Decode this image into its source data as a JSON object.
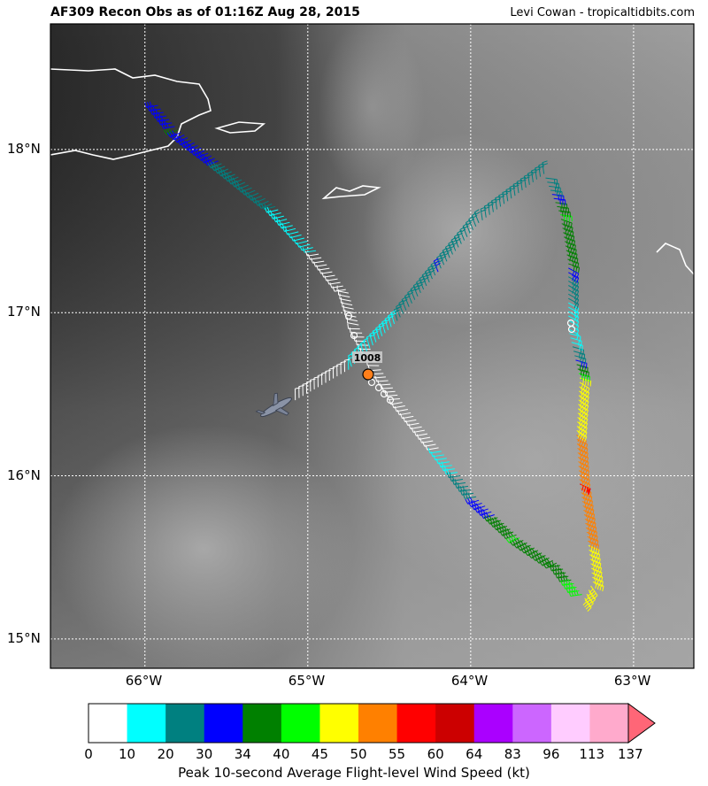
{
  "header": {
    "title": "AF309 Recon Obs as of 01:16Z Aug 28, 2015",
    "credit": "Levi Cowan - tropicaltidbits.com"
  },
  "map": {
    "lon_range": [
      -66.58,
      -62.63
    ],
    "lat_range": [
      14.82,
      18.77
    ],
    "lon_ticks": [
      {
        "value": -66,
        "label": "66°W"
      },
      {
        "value": -65,
        "label": "65°W"
      },
      {
        "value": -64,
        "label": "64°W"
      },
      {
        "value": -63,
        "label": "63°W"
      }
    ],
    "lat_ticks": [
      {
        "value": 18,
        "label": "18°N"
      },
      {
        "value": 17,
        "label": "17°N"
      },
      {
        "value": 16,
        "label": "16°N"
      },
      {
        "value": 15,
        "label": "15°N"
      }
    ],
    "grid": true,
    "center_fix": {
      "lon": -64.62,
      "lat": 16.61,
      "pressure_label": "1008"
    },
    "aircraft_icon": "aircraft-icon",
    "flight_path": [
      {
        "lon": -65.92,
        "lat": 18.27,
        "wind": 30
      },
      {
        "lon": -65.8,
        "lat": 18.12,
        "wind": 34
      },
      {
        "lon": -65.55,
        "lat": 17.93,
        "wind": 30
      },
      {
        "lon": -65.2,
        "lat": 17.65,
        "wind": 20
      },
      {
        "lon": -64.95,
        "lat": 17.38,
        "wind": 10
      },
      {
        "lon": -64.75,
        "lat": 17.12,
        "wind": 5
      },
      {
        "lon": -64.68,
        "lat": 16.9,
        "wind": 5
      },
      {
        "lon": -64.55,
        "lat": 16.65,
        "wind": 5
      },
      {
        "lon": -64.42,
        "lat": 16.45,
        "wind": 5
      },
      {
        "lon": -64.18,
        "lat": 16.15,
        "wind": 10
      },
      {
        "lon": -63.95,
        "lat": 15.85,
        "wind": 30
      },
      {
        "lon": -63.7,
        "lat": 15.62,
        "wind": 40
      },
      {
        "lon": -63.45,
        "lat": 15.45,
        "wind": 34
      },
      {
        "lon": -63.3,
        "lat": 15.25,
        "wind": 45
      },
      {
        "lon": -63.25,
        "lat": 15.35,
        "wind": 45
      },
      {
        "lon": -63.28,
        "lat": 15.6,
        "wind": 50
      },
      {
        "lon": -63.33,
        "lat": 15.95,
        "wind": 55
      },
      {
        "lon": -63.35,
        "lat": 16.25,
        "wind": 50
      },
      {
        "lon": -63.33,
        "lat": 16.6,
        "wind": 45
      },
      {
        "lon": -63.4,
        "lat": 16.9,
        "wind": 10
      },
      {
        "lon": -63.4,
        "lat": 17.3,
        "wind": 34
      },
      {
        "lon": -63.45,
        "lat": 17.6,
        "wind": 40
      },
      {
        "lon": -63.55,
        "lat": 17.85,
        "wind": 20
      },
      {
        "lon": -63.95,
        "lat": 17.55,
        "wind": 20
      },
      {
        "lon": -64.2,
        "lat": 17.25,
        "wind": 30
      },
      {
        "lon": -64.45,
        "lat": 16.95,
        "wind": 20
      },
      {
        "lon": -64.75,
        "lat": 16.65,
        "wind": 10
      },
      {
        "lon": -65.1,
        "lat": 16.45,
        "wind": 5
      }
    ]
  },
  "colorbar": {
    "title": "Peak 10-second Average Flight-level Wind Speed (kt)",
    "bounds": [
      0,
      10,
      20,
      30,
      34,
      40,
      45,
      50,
      55,
      60,
      64,
      83,
      96,
      113,
      137
    ],
    "colors": [
      "#ffffff",
      "#00ffff",
      "#008080",
      "#0000ff",
      "#008000",
      "#00ff00",
      "#ffff00",
      "#ff8000",
      "#ff0000",
      "#cc0000",
      "#aa00ff",
      "#cc66ff",
      "#ffccff",
      "#ffaacc",
      "#ff6677"
    ]
  }
}
